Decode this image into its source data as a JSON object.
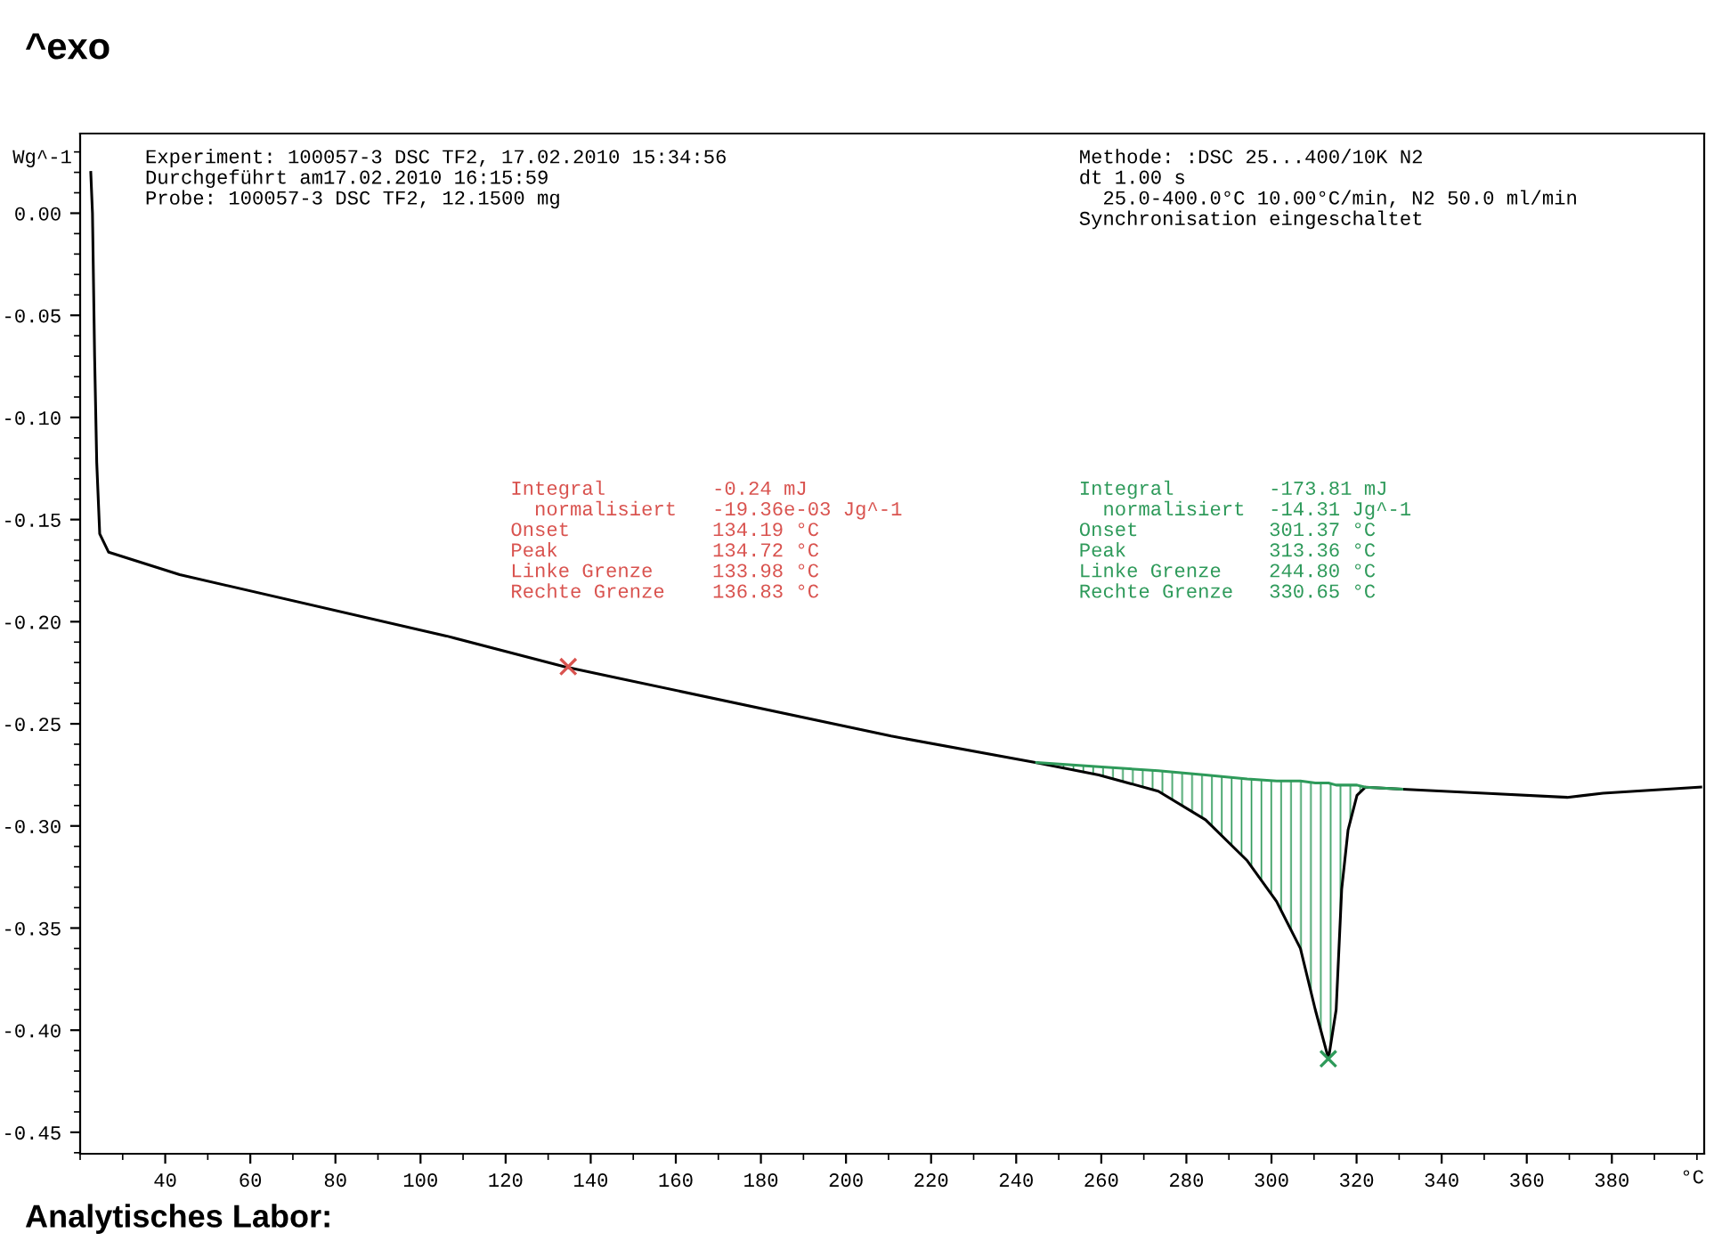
{
  "chart_data": {
    "type": "line",
    "title": "^exo",
    "xlabel": "°C",
    "ylabel": "Wg^-1",
    "xlim": [
      20,
      401.7
    ],
    "ylim": [
      -0.4605,
      0.039
    ],
    "xticks": [
      40,
      60,
      80,
      100,
      120,
      140,
      160,
      180,
      200,
      220,
      240,
      260,
      280,
      300,
      320,
      340,
      360,
      380
    ],
    "yticks": [
      {
        "value": 0,
        "label": "0.00"
      },
      {
        "value": -0.05,
        "label": "-0.05"
      },
      {
        "value": -0.1,
        "label": "-0.10"
      },
      {
        "value": -0.15,
        "label": "-0.15"
      },
      {
        "value": -0.2,
        "label": "-0.20"
      },
      {
        "value": -0.25,
        "label": "-0.25"
      },
      {
        "value": -0.3,
        "label": "-0.30"
      },
      {
        "value": -0.35,
        "label": "-0.35"
      },
      {
        "value": -0.4,
        "label": "-0.40"
      },
      {
        "value": -0.45,
        "label": "-0.45"
      }
    ],
    "grid": false,
    "legend": false,
    "series": [
      {
        "color": "#000000",
        "x": [
          22.5,
          22.9,
          23.4,
          23.9,
          24.6,
          26.7,
          43.4,
          106.1,
          133.7,
          210.6,
          244.8,
          259.4,
          273.4,
          284.5,
          294.3,
          301.2,
          306.8,
          310.3,
          313.4,
          315.2,
          316.5,
          318.0,
          320.1,
          322.1,
          330.8,
          350.0,
          369.5,
          377.9,
          400.9
        ],
        "values": [
          0.02,
          0.0,
          -0.07,
          -0.122,
          -0.157,
          -0.166,
          -0.177,
          -0.207,
          -0.222,
          -0.256,
          -0.269,
          -0.275,
          -0.283,
          -0.297,
          -0.317,
          -0.337,
          -0.36,
          -0.39,
          -0.414,
          -0.39,
          -0.331,
          -0.302,
          -0.285,
          -0.281,
          -0.282,
          -0.284,
          -0.286,
          -0.284,
          -0.281
        ]
      },
      {
        "color": "#2e9a5a",
        "x": [
          244.8,
          259.4,
          273.4,
          284.5,
          294.3,
          301.2,
          306.8,
          310.3,
          313.4,
          315.2,
          316.5,
          318.0,
          320.1,
          322.1,
          330.65
        ],
        "values": [
          -0.269,
          -0.271,
          -0.273,
          -0.275,
          -0.277,
          -0.278,
          -0.278,
          -0.279,
          -0.279,
          -0.28,
          -0.28,
          -0.28,
          -0.28,
          -0.281,
          -0.282
        ],
        "lower": [
          -0.269,
          -0.275,
          -0.283,
          -0.297,
          -0.317,
          -0.337,
          -0.36,
          -0.39,
          -0.414,
          -0.39,
          -0.331,
          -0.302,
          -0.285,
          -0.281,
          -0.282
        ],
        "upper": [
          -0.269,
          -0.271,
          -0.273,
          -0.275,
          -0.277,
          -0.278,
          -0.278,
          -0.279,
          -0.279,
          -0.28,
          -0.28,
          -0.28,
          -0.28,
          -0.281,
          -0.282
        ]
      },
      {
        "type": "scatter",
        "color": "#d9534f",
        "marker": "cross",
        "x": [
          134.72
        ],
        "values": [
          -0.222
        ]
      },
      {
        "type": "scatter",
        "color": "#2e9a5a",
        "marker": "cross",
        "x": [
          313.36
        ],
        "values": [
          -0.414
        ]
      }
    ],
    "annotations": [
      "Experiment: 100057-3 DSC TF2, 17.02.2010 15:34:56\nDurchgeführt am17.02.2010 16:15:59\nProbe: 100057-3 DSC TF2, 12.1500 mg",
      "Methode: :DSC 25...400/10K N2\ndt 1.00 s\n  25.0-400.0°C 10.00°C/min, N2 50.0 ml/min\nSynchronisation eingeschaltet",
      "Integral         -0.24 mJ\n  normalisiert   -19.36e-03 Jg^-1\nOnset            134.19 °C\nPeak             134.72 °C\nLinke Grenze     133.98 °C\nRechte Grenze    136.83 °C",
      "Integral        -173.81 mJ\n  normalisiert  -14.31 Jg^-1\nOnset           301.37 °C\nPeak            313.36 °C\nLinke Grenze    244.80 °C\nRechte Grenze   330.65 °C",
      "Analytisches Labor:"
    ]
  }
}
